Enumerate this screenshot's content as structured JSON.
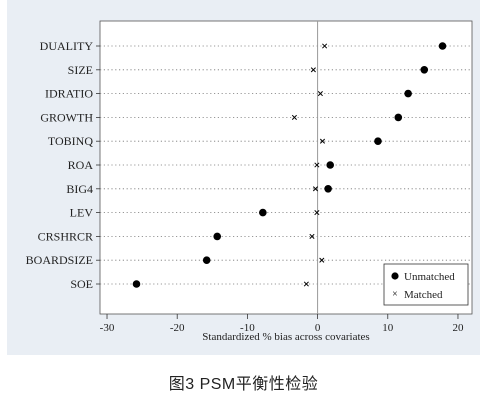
{
  "chart_data": {
    "type": "scatter",
    "title": "",
    "xlabel": "Standardized % bias across covariates",
    "ylabel": "",
    "xlim": [
      -31,
      22
    ],
    "xticks": [
      -30,
      -20,
      -10,
      0,
      10,
      20
    ],
    "grid": "dotted horizontal lines",
    "legend_position": "bottom-right",
    "categories": [
      "DUALITY",
      "SIZE",
      "IDRATIO",
      "GROWTH",
      "TOBINQ",
      "ROA",
      "BIG4",
      "LEV",
      "CRSHRCR",
      "BOARDSIZE",
      "SOE"
    ],
    "series": [
      {
        "name": "Unmatched",
        "marker": "filled-circle",
        "values": [
          17.8,
          15.2,
          12.9,
          11.5,
          8.6,
          1.8,
          1.5,
          -7.8,
          -14.3,
          -15.8,
          -25.8
        ]
      },
      {
        "name": "Matched",
        "marker": "cross",
        "values": [
          1.0,
          -0.6,
          0.4,
          -3.3,
          0.7,
          -0.1,
          -0.3,
          -0.1,
          -0.8,
          0.6,
          -1.6
        ]
      }
    ]
  },
  "caption": "图3   PSM平衡性检验",
  "colors": {
    "panel_bg": "#e9eef4",
    "plot_bg": "#ffffff",
    "marker": "#000000",
    "zero_line": "#999999"
  }
}
